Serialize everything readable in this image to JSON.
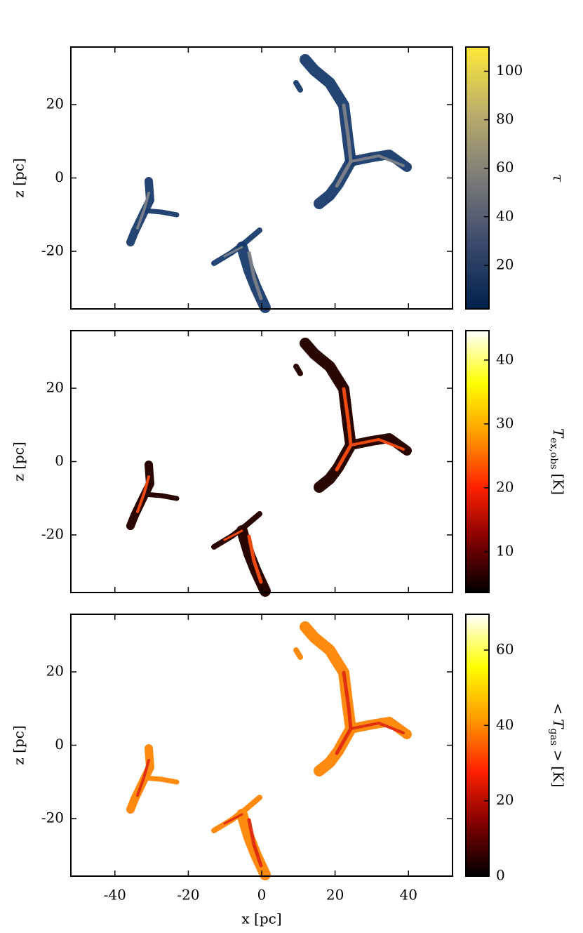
{
  "chart_data": [
    {
      "type": "image",
      "xlim": [
        -52,
        52
      ],
      "ylim": [
        -35.7,
        35.7
      ],
      "xticks": [
        -40,
        -20,
        0,
        20,
        40
      ],
      "yticks": [
        -20,
        0,
        20
      ],
      "xticklabels": false,
      "ylabel": "z [pc]",
      "colorbar": {
        "label": {
          "text": "τ"
        },
        "lim": [
          2,
          110
        ],
        "ticks": [
          20,
          40,
          60,
          80,
          100
        ],
        "colors": [
          "#00224e",
          "#3b496c",
          "#7c7b78",
          "#bcae6b",
          "#fee838"
        ]
      }
    },
    {
      "type": "image",
      "xlim": [
        -52,
        52
      ],
      "ylim": [
        -35.7,
        35.7
      ],
      "xticks": [
        -40,
        -20,
        0,
        20,
        40
      ],
      "yticks": [
        -20,
        0,
        20
      ],
      "xticklabels": false,
      "ylabel": "z [pc]",
      "colorbar": {
        "label": {
          "text": "T",
          "sub": "ex,obs",
          "unit": "[K]"
        },
        "lim": [
          3.6,
          44.6
        ],
        "ticks": [
          10,
          20,
          30,
          40
        ],
        "colors": [
          "#000000",
          "#800000",
          "#ff2000",
          "#ff9a00",
          "#ffff00",
          "#ffffff"
        ]
      }
    },
    {
      "type": "image",
      "xlim": [
        -52,
        52
      ],
      "ylim": [
        -35.7,
        35.7
      ],
      "xticks": [
        -40,
        -20,
        0,
        20,
        40
      ],
      "yticks": [
        -20,
        0,
        20
      ],
      "xticklabels": true,
      "xlabel": "x [pc]",
      "ylabel": "z [pc]",
      "colorbar": {
        "label": {
          "prefix": "<",
          "text": "T",
          "sub": "gas",
          "unit": "> [K]"
        },
        "lim": [
          0,
          69.5
        ],
        "ticks": [
          0,
          20,
          40,
          60
        ],
        "colors": [
          "#000000",
          "#800000",
          "#ff2000",
          "#ff9a00",
          "#ffff00",
          "#ffffff"
        ]
      }
    }
  ]
}
